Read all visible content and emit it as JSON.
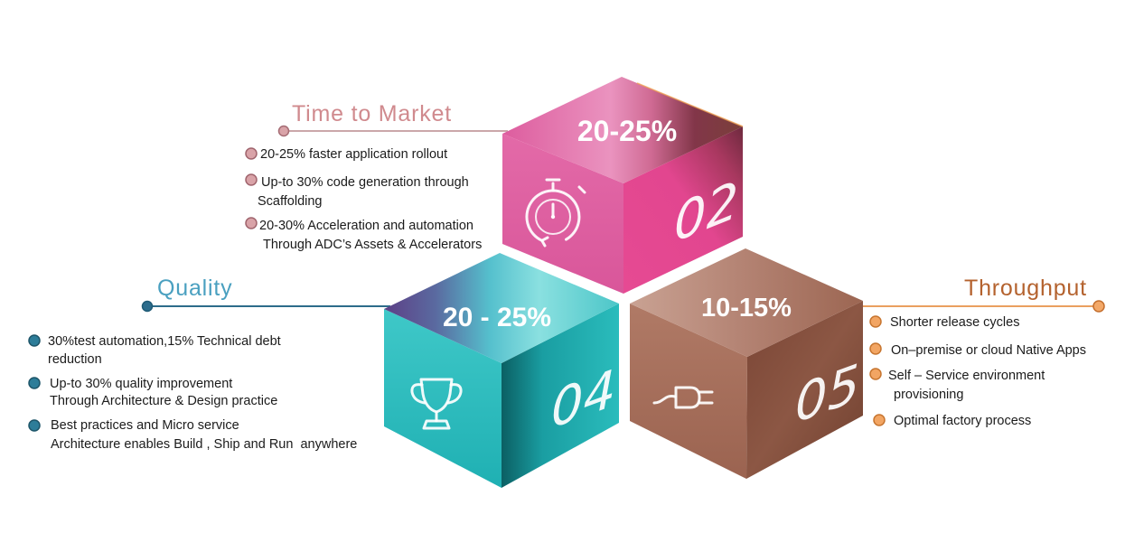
{
  "sections": {
    "time_to_market": {
      "title": "Time to Market",
      "metric": "20-25%",
      "number": "02",
      "icon": "stopwatch-icon",
      "title_color": "#d08a8e",
      "bullets": [
        [
          "20-25% faster application rollout"
        ],
        [
          "Up-to 30% code generation through",
          "Scaffolding"
        ],
        [
          "20-30% Acceleration and automation",
          "Through ADC’s Assets & Accelerators"
        ]
      ]
    },
    "quality": {
      "title": "Quality",
      "metric": "20 - 25%",
      "number": "04",
      "icon": "trophy-icon",
      "title_color": "#4aa0c0",
      "bullets": [
        [
          "30%test automation,15% Technical debt",
          "reduction"
        ],
        [
          "Up-to 30% quality improvement",
          "Through Architecture & Design practice"
        ],
        [
          "Best practices and Micro service",
          "Architecture enables Build , Ship and Run  anywhere"
        ]
      ]
    },
    "throughput": {
      "title": "Throughput",
      "metric": "10-15%",
      "number": "05",
      "icon": "plug-icon",
      "title_color": "#b4622e",
      "bullets": [
        [
          "Shorter release cycles"
        ],
        [
          "On–premise or cloud Native Apps"
        ],
        [
          "Self – Service environment",
          "provisioning"
        ],
        [
          "Optimal factory process"
        ]
      ]
    }
  }
}
